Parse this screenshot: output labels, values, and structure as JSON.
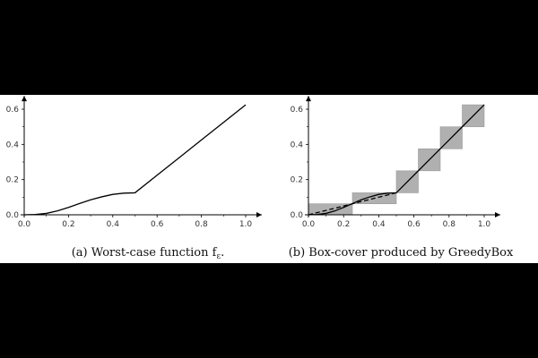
{
  "chart_data": [
    {
      "type": "line",
      "caption": "(a) Worst-case function f",
      "caption_symbol_sub": "ε",
      "caption_end": ".",
      "xlim": [
        0.0,
        1.0
      ],
      "ylim": [
        0.0,
        0.6
      ],
      "x_ticks": [
        "0.0",
        "0.2",
        "0.4",
        "0.6",
        "0.8",
        "1.0"
      ],
      "y_ticks": [
        "0.0",
        "0.2",
        "0.4",
        "0.6"
      ],
      "grid": false,
      "series": [
        {
          "style": "solid",
          "x": [
            0.0,
            0.05,
            0.1,
            0.15,
            0.2,
            0.25,
            0.3,
            0.35,
            0.4,
            0.45,
            0.5,
            0.6,
            0.7,
            0.8,
            0.9,
            1.0
          ],
          "y": [
            0.0,
            0.002,
            0.008,
            0.022,
            0.042,
            0.064,
            0.085,
            0.102,
            0.116,
            0.123,
            0.125,
            0.225,
            0.325,
            0.425,
            0.525,
            0.625
          ]
        }
      ]
    },
    {
      "type": "line",
      "caption": "(b) Box-cover produced by GreedyBox",
      "xlim": [
        0.0,
        1.0
      ],
      "ylim": [
        0.0,
        0.6
      ],
      "x_ticks": [
        "0.0",
        "0.2",
        "0.4",
        "0.6",
        "0.8",
        "1.0"
      ],
      "y_ticks": [
        "0.0",
        "0.2",
        "0.4",
        "0.6"
      ],
      "grid": false,
      "box_fill": "#b0b0b0",
      "boxes": [
        {
          "x0": 0.0,
          "x1": 0.25,
          "y0": 0.0,
          "y1": 0.0625
        },
        {
          "x0": 0.25,
          "x1": 0.5,
          "y0": 0.0625,
          "y1": 0.125
        },
        {
          "x0": 0.5,
          "x1": 0.625,
          "y0": 0.125,
          "y1": 0.25
        },
        {
          "x0": 0.625,
          "x1": 0.75,
          "y0": 0.25,
          "y1": 0.375
        },
        {
          "x0": 0.75,
          "x1": 0.875,
          "y0": 0.375,
          "y1": 0.5
        },
        {
          "x0": 0.875,
          "x1": 1.0,
          "y0": 0.5,
          "y1": 0.625
        }
      ],
      "series": [
        {
          "style": "solid",
          "x": [
            0.0,
            0.05,
            0.1,
            0.15,
            0.2,
            0.25,
            0.3,
            0.35,
            0.4,
            0.45,
            0.5,
            0.6,
            0.7,
            0.8,
            0.9,
            1.0
          ],
          "y": [
            0.0,
            0.002,
            0.008,
            0.022,
            0.042,
            0.064,
            0.085,
            0.102,
            0.116,
            0.123,
            0.125,
            0.225,
            0.325,
            0.425,
            0.525,
            0.625
          ]
        },
        {
          "style": "dashed",
          "x": [
            0.0,
            0.25,
            0.5
          ],
          "y": [
            0.0,
            0.0625,
            0.125
          ]
        }
      ]
    }
  ]
}
